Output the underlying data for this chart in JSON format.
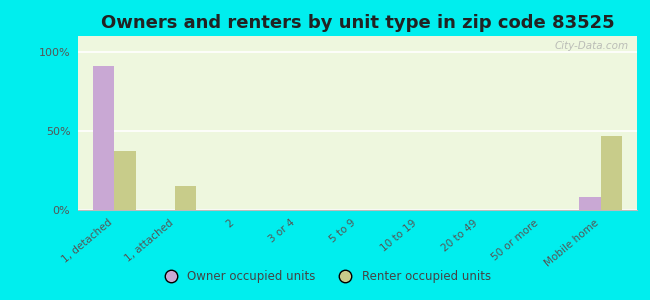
{
  "title": "Owners and renters by unit type in zip code 83525",
  "categories": [
    "1, detached",
    "1, attached",
    "2",
    "3 or 4",
    "5 to 9",
    "10 to 19",
    "20 to 49",
    "50 or more",
    "Mobile home"
  ],
  "owner_values": [
    91,
    0,
    0,
    0,
    0,
    0,
    0,
    0,
    8
  ],
  "renter_values": [
    37,
    15,
    0,
    0,
    0,
    0,
    0,
    0,
    47
  ],
  "owner_color": "#c9a8d4",
  "renter_color": "#c8cc8a",
  "background_color": "#00eeee",
  "plot_bg_color": "#eef7de",
  "yticks": [
    0,
    50,
    100
  ],
  "ylabels": [
    "0%",
    "50%",
    "100%"
  ],
  "ylim": [
    0,
    110
  ],
  "bar_width": 0.35,
  "watermark": "City-Data.com",
  "legend_owner": "Owner occupied units",
  "legend_renter": "Renter occupied units",
  "title_fontsize": 13,
  "tick_fontsize": 7.5,
  "ytick_fontsize": 8
}
